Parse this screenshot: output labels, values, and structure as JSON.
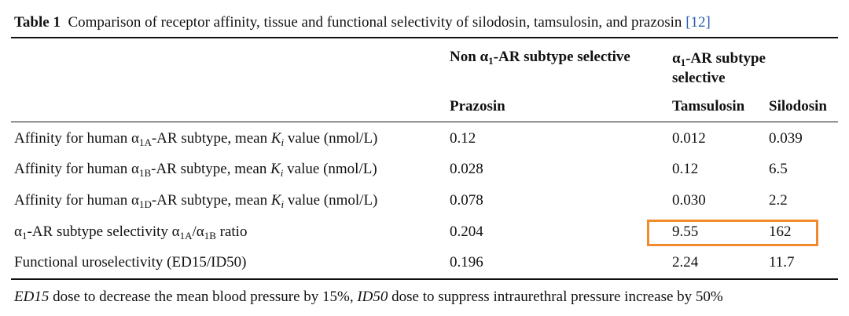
{
  "caption": {
    "label": "Table 1",
    "text": "Comparison of receptor affinity, tissue and functional selectivity of silodosin, tamsulosin, and prazosin",
    "reference": "[12]"
  },
  "table": {
    "header": {
      "group1": [
        "Non α",
        "1",
        "-AR subtype selective"
      ],
      "group2": [
        "α",
        "1",
        "-AR subtype selective"
      ],
      "columns": [
        "Prazosin",
        "Tamsulosin",
        "Silodosin"
      ]
    },
    "rows": [
      {
        "label": [
          "Affinity for human α",
          "1A",
          "-AR subtype, mean ",
          "K",
          "i",
          " value (nmol/L)"
        ],
        "values": [
          "0.12",
          "0.012",
          "0.039"
        ]
      },
      {
        "label": [
          "Affinity for human α",
          "1B",
          "-AR subtype, mean ",
          "K",
          "i",
          " value (nmol/L)"
        ],
        "values": [
          "0.028",
          "0.12",
          "6.5"
        ]
      },
      {
        "label": [
          "Affinity for human α",
          "1D",
          "-AR subtype, mean ",
          "K",
          "i",
          " value (nmol/L)"
        ],
        "values": [
          "0.078",
          "0.030",
          "2.2"
        ]
      },
      {
        "label": [
          "α",
          "1",
          "-AR subtype selectivity α",
          "1A",
          "/α",
          "1B",
          " ratio"
        ],
        "values": [
          "0.204",
          "9.55",
          "162"
        ]
      },
      {
        "label": [
          "Functional uroselectivity (ED15/ID50)"
        ],
        "values": [
          "0.196",
          "2.24",
          "11.7"
        ]
      }
    ]
  },
  "footnote": [
    "ED15",
    " dose to decrease the mean blood pressure by 15%, ",
    "ID50",
    " dose to suppress intraurethral pressure increase by 50%"
  ]
}
